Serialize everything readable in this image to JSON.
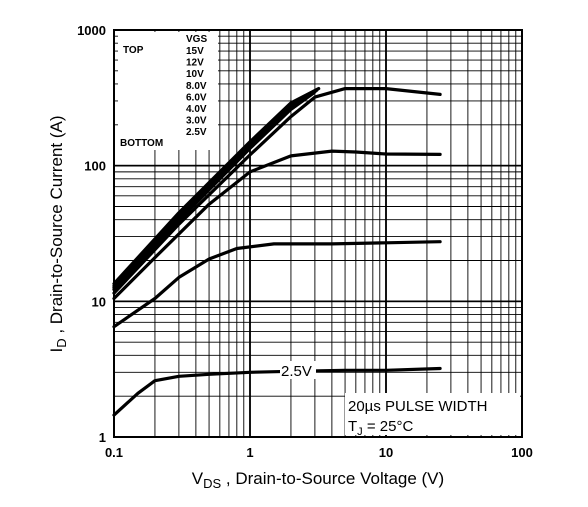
{
  "chart_data": {
    "type": "line",
    "xscale": "log",
    "yscale": "log",
    "xlim": [
      0.1,
      100
    ],
    "ylim": [
      1,
      1000
    ],
    "grid": true,
    "x_ticks": [
      "0.1",
      "1",
      "10",
      "100"
    ],
    "y_ticks": [
      "1",
      "10",
      "100",
      "1000"
    ],
    "xlabel_main": "V",
    "xlabel_sub": "DS",
    "xlabel_rest": " , Drain-to-Source Voltage (V)",
    "ylabel_main": "I",
    "ylabel_sub": "D",
    "ylabel_rest": " , Drain-to-Source Current (A)",
    "legend": {
      "header": "VGS",
      "top_label": "TOP",
      "bottom_label": "BOTTOM",
      "entries": [
        "15V",
        "12V",
        "10V",
        "8.0V",
        "6.0V",
        "4.0V",
        "3.0V",
        "2.5V"
      ]
    },
    "note_line1": "20µs PULSE WIDTH",
    "note_line2_main": "T",
    "note_line2_sub": "J",
    "note_line2_rest": " = 25°C",
    "curve_label": "2.5V",
    "series": [
      {
        "x": [
          0.1,
          0.3,
          1,
          2,
          3.2
        ],
        "y": [
          13.5,
          45,
          150,
          290,
          370
        ]
      },
      {
        "x": [
          0.1,
          0.3,
          1,
          2,
          3.1
        ],
        "y": [
          13,
          43,
          145,
          280,
          360
        ]
      },
      {
        "x": [
          0.1,
          0.3,
          1,
          2,
          3.0
        ],
        "y": [
          12.6,
          41,
          140,
          270,
          350
        ]
      },
      {
        "x": [
          0.1,
          0.3,
          1,
          2,
          2.9
        ],
        "y": [
          12.2,
          39.5,
          134,
          260,
          340
        ]
      },
      {
        "x": [
          0.1,
          0.3,
          1,
          2,
          3,
          5,
          10,
          25
        ],
        "y": [
          11.5,
          37,
          120,
          230,
          320,
          370,
          370,
          335
        ]
      },
      {
        "x": [
          0.1,
          0.2,
          0.5,
          1,
          2,
          4,
          6,
          10,
          25
        ],
        "y": [
          10.5,
          21,
          52,
          90,
          118,
          128,
          126,
          122,
          121
        ]
      },
      {
        "x": [
          0.1,
          0.2,
          0.3,
          0.5,
          0.8,
          1.5,
          4,
          10,
          25
        ],
        "y": [
          6.5,
          10.5,
          15,
          20.5,
          24.5,
          26.5,
          26.5,
          27,
          27.5
        ]
      },
      {
        "x": [
          0.1,
          0.15,
          0.2,
          0.3,
          0.5,
          1,
          2,
          5,
          10,
          25
        ],
        "y": [
          1.45,
          2.1,
          2.6,
          2.8,
          2.9,
          3.0,
          3.05,
          3.1,
          3.1,
          3.2
        ]
      }
    ]
  }
}
